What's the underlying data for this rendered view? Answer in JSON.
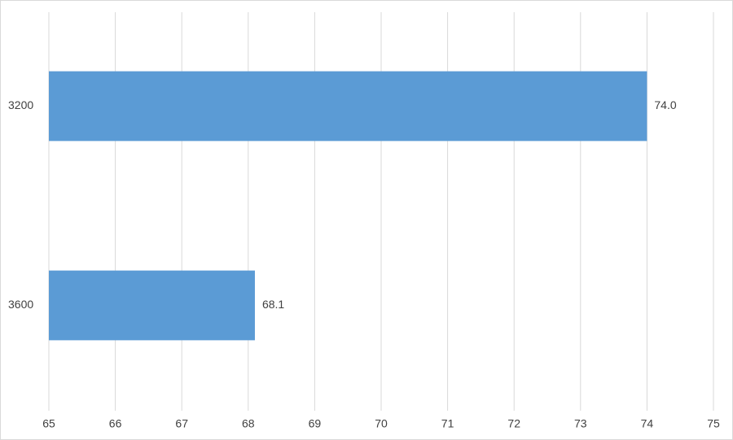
{
  "chart_data": {
    "type": "bar",
    "orientation": "horizontal",
    "categories": [
      "3200",
      "3600"
    ],
    "values": [
      74,
      68.1
    ],
    "value_labels": [
      "74.0",
      "68.1"
    ],
    "color": "#5b9bd5",
    "xlim": [
      65,
      75
    ],
    "xticks": [
      65,
      66,
      67,
      68,
      69,
      70,
      71,
      72,
      73,
      74,
      75
    ],
    "grid": true
  }
}
